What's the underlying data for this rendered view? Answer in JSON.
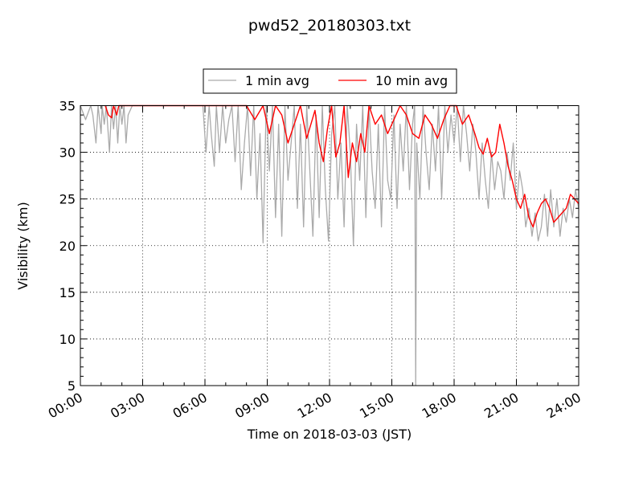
{
  "chart_data": {
    "type": "line",
    "title": "pwd52_20180303.txt",
    "xlabel": "Time on 2018-03-03 (JST)",
    "ylabel": "Visibility (km)",
    "x_range_hours": [
      0,
      24
    ],
    "ylim": [
      5,
      35
    ],
    "x_ticks": [
      "00:00",
      "03:00",
      "06:00",
      "09:00",
      "12:00",
      "15:00",
      "18:00",
      "21:00",
      "24:00"
    ],
    "y_ticks": [
      5,
      10,
      15,
      20,
      25,
      30,
      35
    ],
    "grid": true,
    "legend_position": "top-center",
    "series": [
      {
        "name": "1 min avg",
        "color": "#aaaaaa",
        "x": [
          0.0,
          0.25,
          0.5,
          0.6,
          0.75,
          0.85,
          1.0,
          1.05,
          1.15,
          1.25,
          1.4,
          1.5,
          1.6,
          1.7,
          1.8,
          1.9,
          2.0,
          2.1,
          2.2,
          2.3,
          2.5,
          2.7,
          3.0,
          3.5,
          4.0,
          4.5,
          5.0,
          5.5,
          5.9,
          6.05,
          6.2,
          6.3,
          6.45,
          6.55,
          6.7,
          6.85,
          7.0,
          7.15,
          7.3,
          7.45,
          7.6,
          7.75,
          7.9,
          8.05,
          8.2,
          8.35,
          8.5,
          8.65,
          8.8,
          8.95,
          9.1,
          9.25,
          9.4,
          9.55,
          9.7,
          9.85,
          10.0,
          10.15,
          10.3,
          10.45,
          10.6,
          10.75,
          10.9,
          11.05,
          11.2,
          11.35,
          11.5,
          11.65,
          11.8,
          11.95,
          12.1,
          12.25,
          12.4,
          12.55,
          12.7,
          12.85,
          13.0,
          13.15,
          13.3,
          13.45,
          13.6,
          13.75,
          13.9,
          14.05,
          14.2,
          14.35,
          14.5,
          14.65,
          14.8,
          14.95,
          15.1,
          15.25,
          15.4,
          15.55,
          15.7,
          15.85,
          16.0,
          16.1,
          16.15,
          16.2,
          16.35,
          16.5,
          16.65,
          16.8,
          16.95,
          17.1,
          17.25,
          17.4,
          17.55,
          17.7,
          17.85,
          18.0,
          18.15,
          18.3,
          18.45,
          18.6,
          18.75,
          18.9,
          19.05,
          19.2,
          19.35,
          19.5,
          19.65,
          19.8,
          19.95,
          20.1,
          20.25,
          20.4,
          20.55,
          20.7,
          20.85,
          21.0,
          21.15,
          21.3,
          21.45,
          21.6,
          21.75,
          21.9,
          22.05,
          22.2,
          22.35,
          22.5,
          22.65,
          22.8,
          22.95,
          23.1,
          23.25,
          23.4,
          23.55,
          23.7,
          23.85,
          24.0
        ],
        "values": [
          35,
          33.5,
          35,
          34,
          31,
          35,
          32,
          35,
          33,
          35,
          30,
          35,
          32.5,
          35,
          31,
          35,
          33,
          35,
          31,
          34,
          35,
          35,
          35,
          35,
          35,
          35,
          35,
          35,
          35,
          30,
          35,
          32,
          28.5,
          35,
          30,
          35,
          31,
          33.5,
          35,
          29,
          35,
          26,
          31,
          35,
          27.5,
          35,
          25,
          32,
          20.3,
          35,
          28,
          35,
          23,
          33,
          21,
          35,
          27,
          31,
          35,
          24,
          33,
          22,
          35,
          28,
          21,
          34,
          23,
          35,
          26,
          20.5,
          32,
          35,
          25,
          31,
          22,
          35,
          30,
          20,
          33,
          27,
          35,
          23,
          35,
          28,
          24,
          33,
          22,
          35,
          27,
          25,
          34,
          24,
          33,
          28,
          35,
          26,
          33,
          35,
          5,
          31,
          25,
          35,
          30,
          26,
          33,
          28,
          35,
          25,
          35,
          30,
          34,
          31,
          35,
          29,
          35,
          32,
          28,
          33,
          30,
          25,
          31,
          27,
          24,
          30,
          26,
          29,
          28,
          25,
          30,
          27,
          31,
          24,
          28,
          26,
          22,
          24,
          21,
          23.5,
          20.5,
          22,
          25.5,
          21,
          26,
          22,
          25,
          21,
          24,
          22.5,
          25,
          23,
          26,
          24
        ]
      },
      {
        "name": "10 min avg",
        "color": "#ff0000",
        "x": [
          1.2,
          1.35,
          1.5,
          1.6,
          1.75,
          1.85,
          2.0,
          8.0,
          8.4,
          8.8,
          9.1,
          9.4,
          9.7,
          10.0,
          10.3,
          10.6,
          10.9,
          11.1,
          11.3,
          11.5,
          11.7,
          11.9,
          12.1,
          12.3,
          12.5,
          12.7,
          12.9,
          13.1,
          13.3,
          13.5,
          13.7,
          13.9,
          14.2,
          14.5,
          14.8,
          15.1,
          15.4,
          15.7,
          16.0,
          16.3,
          16.6,
          16.9,
          17.2,
          17.5,
          17.8,
          18.1,
          18.4,
          18.7,
          19.0,
          19.2,
          19.4,
          19.6,
          19.8,
          20.0,
          20.2,
          20.4,
          20.6,
          20.8,
          21.0,
          21.2,
          21.4,
          21.6,
          21.8,
          22.0,
          22.2,
          22.4,
          22.6,
          22.8,
          23.0,
          23.2,
          23.4,
          23.6,
          23.8,
          24.0
        ],
        "values": [
          35,
          34,
          33.7,
          35,
          34,
          35,
          35,
          35,
          33.5,
          35,
          32,
          35,
          34,
          31,
          33,
          35,
          31.5,
          33,
          34.5,
          31,
          29,
          32.5,
          35,
          29.5,
          31,
          35,
          27.3,
          31,
          29,
          32,
          30,
          35,
          33,
          34,
          32,
          33.5,
          35,
          34,
          32,
          31.5,
          34,
          33,
          31.5,
          33.5,
          35,
          35,
          33,
          34,
          32,
          30.5,
          29.8,
          31.5,
          29.5,
          30,
          33,
          31,
          28.5,
          27,
          25,
          24,
          25.5,
          23,
          22,
          23.5,
          24.5,
          25,
          24,
          22.5,
          23,
          23.5,
          24,
          25.5,
          25,
          24.5
        ]
      }
    ]
  }
}
